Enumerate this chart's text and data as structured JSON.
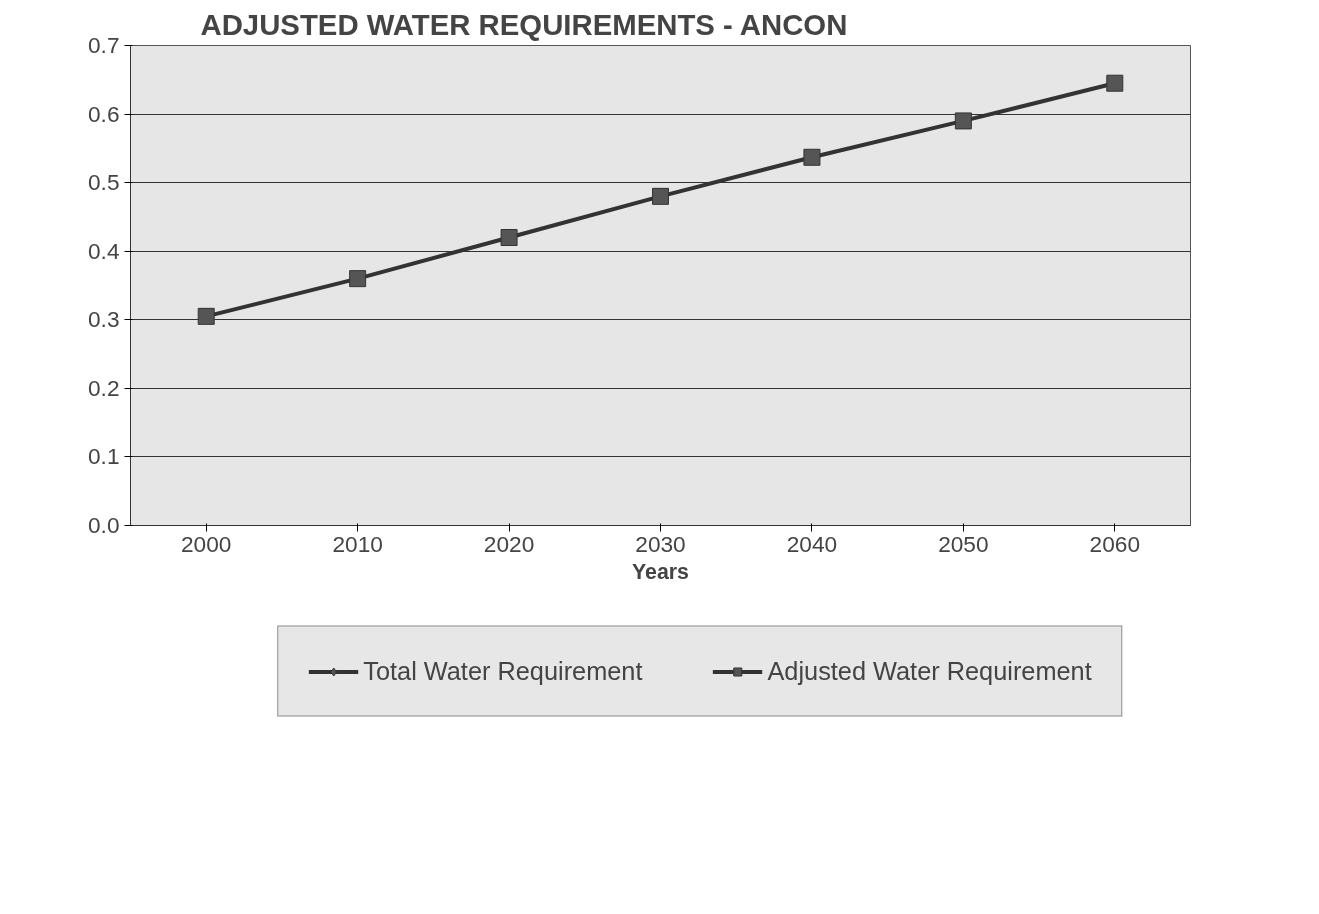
{
  "chart_data": {
    "type": "line",
    "title": "ADJUSTED WATER REQUIREMENTS -        ANCON",
    "xlabel": "Years",
    "categories": [
      "2000",
      "2010",
      "2020",
      "2030",
      "2040",
      "2050",
      "2060"
    ],
    "series": [
      {
        "name": "Total Water Requirement",
        "color": "#333333",
        "marker": "diamond",
        "values": [
          null,
          null,
          null,
          null,
          null,
          null,
          null
        ]
      },
      {
        "name": "Adjusted Water Requirement",
        "color": "#333333",
        "marker": "square",
        "values": [
          0.305,
          0.36,
          0.42,
          0.48,
          0.537,
          0.59,
          0.645
        ]
      }
    ],
    "ylim": [
      0,
      0.7
    ],
    "yticks": [
      {
        "value": 0,
        "label": "0.0"
      },
      0.1,
      0.2,
      0.3,
      0.4,
      0.5,
      0.6,
      0.7
    ],
    "grid": "y",
    "legend": "bottom",
    "line_style": "solid"
  }
}
